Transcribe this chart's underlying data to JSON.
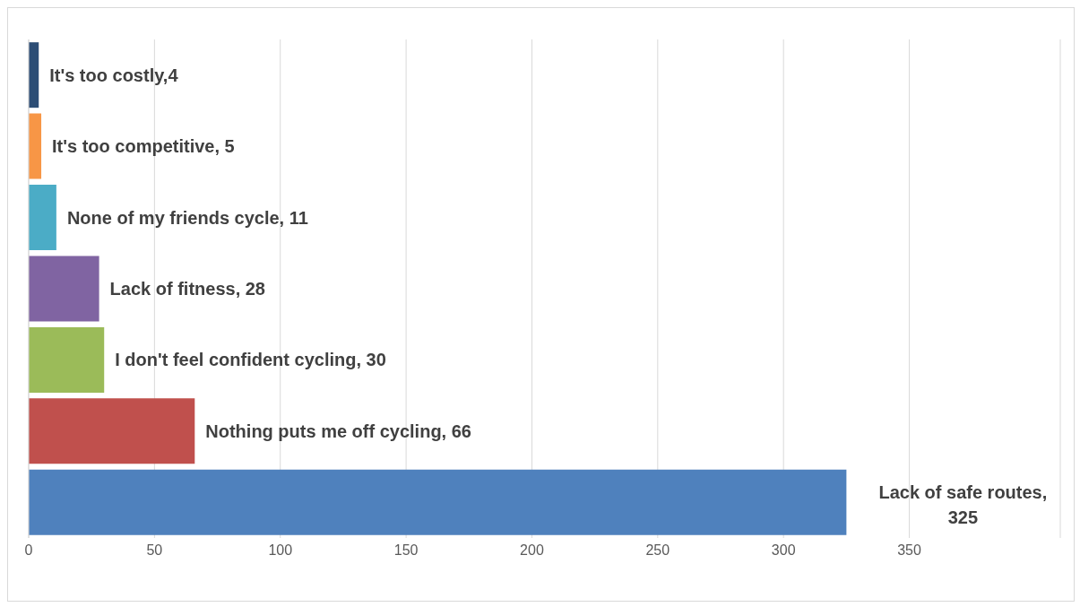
{
  "chart_data": {
    "type": "bar",
    "orientation": "horizontal",
    "categories": [
      null,
      null,
      null,
      null,
      null,
      null,
      null
    ],
    "values": [
      4,
      5,
      11,
      28,
      30,
      66,
      325
    ],
    "colors": [
      "#2c4d75",
      "#f79646",
      "#4bacc6",
      "#8064a2",
      "#9bbb59",
      "#c0504d",
      "#4f81bd"
    ],
    "value_labels": [
      "It's too costly,4",
      "It's too competitive, 5",
      "None of my friends cycle, 11",
      "Lack of fitness, 28",
      "I don't feel confident cycling, 30",
      "Nothing puts me off cycling, 66",
      "Lack of safe routes, 325"
    ],
    "xlim": [
      0,
      410
    ],
    "xticks": [
      0,
      50,
      100,
      150,
      200,
      250,
      300,
      350
    ],
    "grid": "x",
    "legend": false
  }
}
